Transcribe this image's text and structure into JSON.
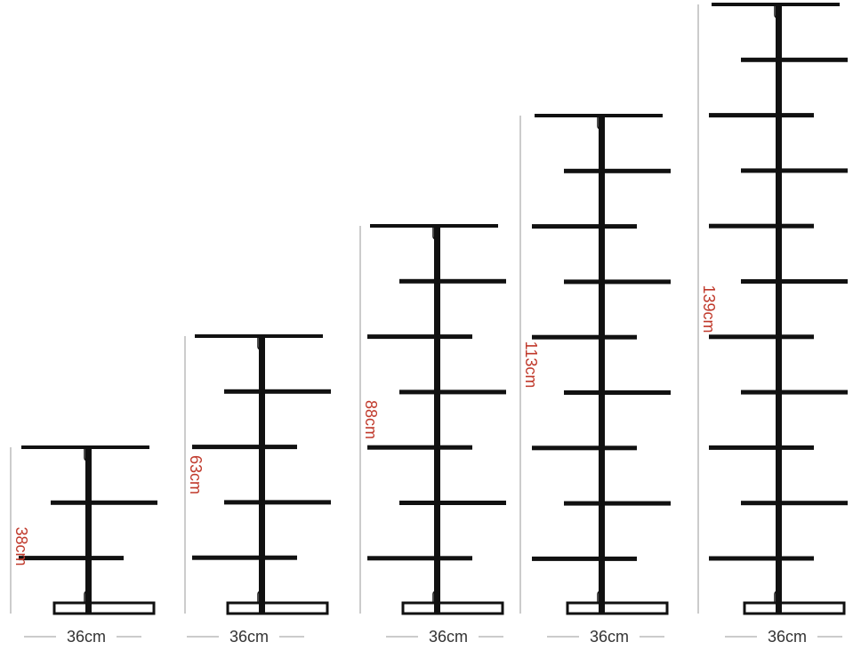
{
  "colors": {
    "rack": "#111111",
    "height_label": "#c0392b",
    "width_label": "#333333",
    "guide_line": "#999999"
  },
  "racks": [
    {
      "height_label": "38cm",
      "width_label": "36cm",
      "shelf_count": 3
    },
    {
      "height_label": "63cm",
      "width_label": "36cm",
      "shelf_count": 5
    },
    {
      "height_label": "88cm",
      "width_label": "36cm",
      "shelf_count": 7
    },
    {
      "height_label": "113cm",
      "width_label": "36cm",
      "shelf_count": 9
    },
    {
      "height_label": "139cm",
      "width_label": "36cm",
      "shelf_count": 11
    }
  ]
}
